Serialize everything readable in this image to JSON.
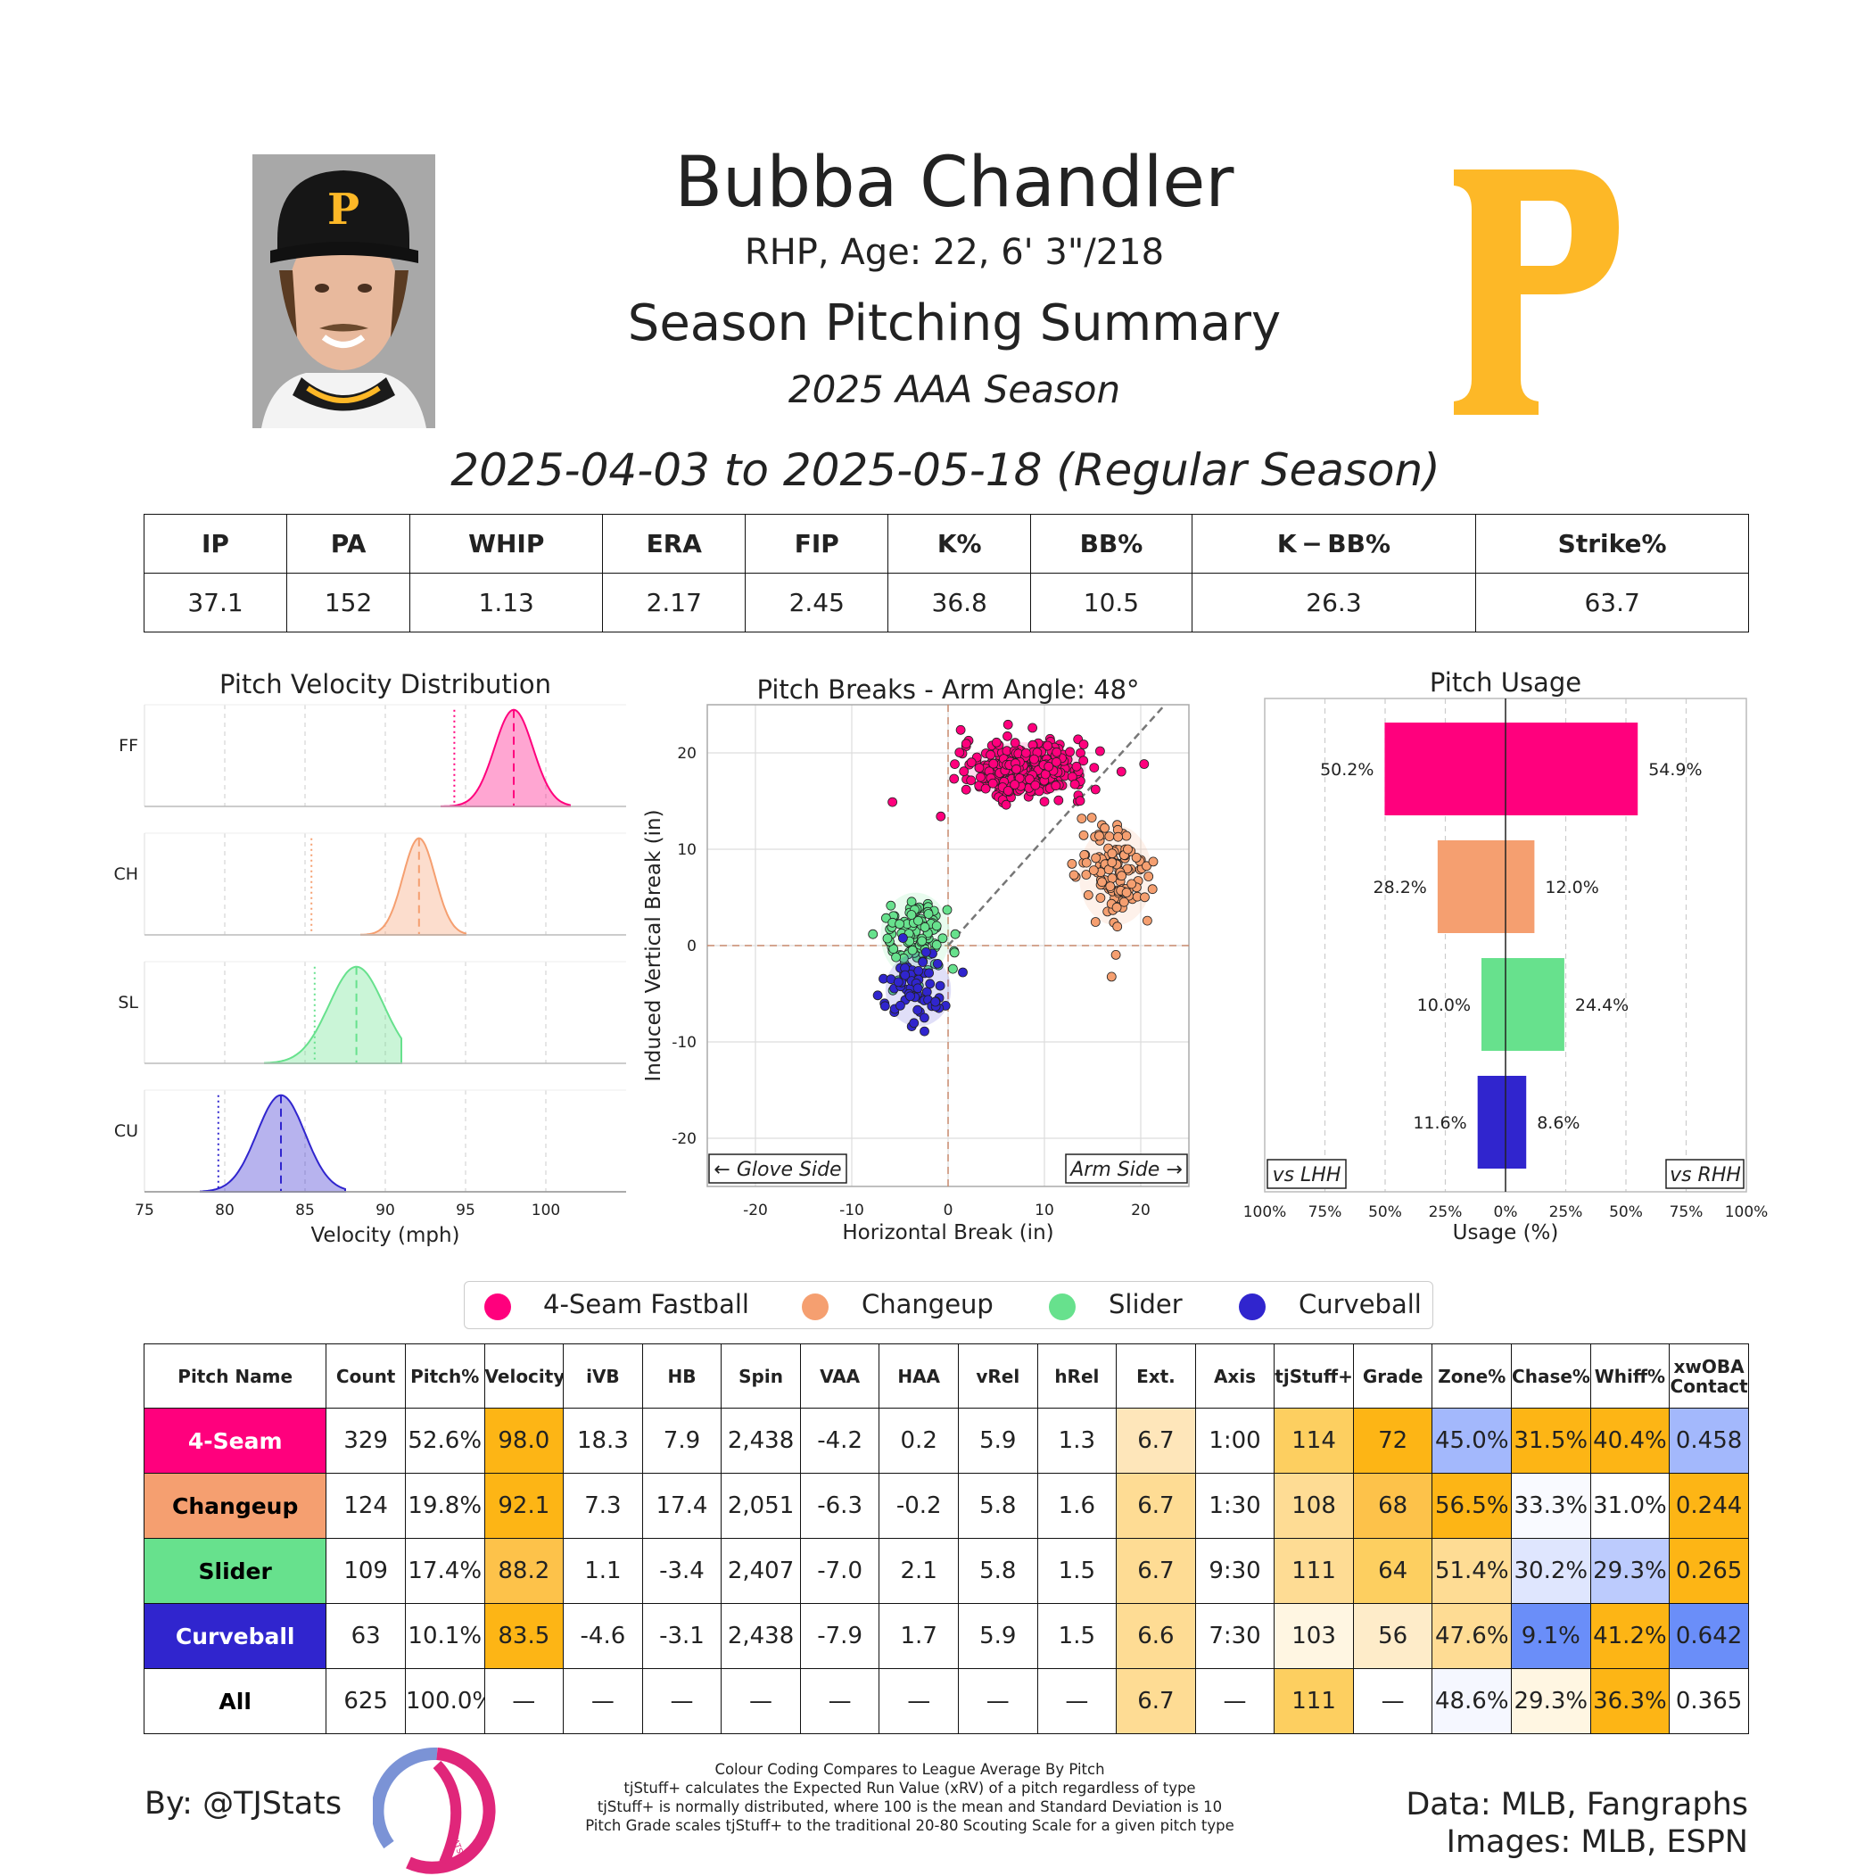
{
  "header": {
    "name": "Bubba Chandler",
    "bio": "RHP, Age: 22, 6' 3\"/218",
    "title": "Season Pitching Summary",
    "season": "2025 AAA Season",
    "date_range": "2025-04-03 to 2025-05-18 (Regular Season)"
  },
  "stat_table": {
    "headers": [
      "IP",
      "PA",
      "WHIP",
      "ERA",
      "FIP",
      "K%",
      "BB%",
      "K − BB%",
      "Strike%"
    ],
    "values": [
      "37.1",
      "152",
      "1.13",
      "2.17",
      "2.45",
      "36.8",
      "10.5",
      "26.3",
      "63.7"
    ]
  },
  "colors": {
    "4-Seam Fastball": "#ff007d",
    "Changeup": "#f59f70",
    "Slider": "#67e18d",
    "Curveball": "#3025ce",
    "team_gold": "#FDB827"
  },
  "legend": [
    "4-Seam Fastball",
    "Changeup",
    "Slider",
    "Curveball"
  ],
  "chart_data": [
    {
      "type": "area",
      "title": "Pitch Velocity Distribution",
      "xlabel": "Velocity (mph)",
      "xlim": [
        75,
        105
      ],
      "xticks": [
        "75",
        "80",
        "85",
        "90",
        "95",
        "100"
      ],
      "grid": true,
      "rows": [
        {
          "label": "FF",
          "pitch": "4-Seam Fastball",
          "mean": 98.0,
          "sd": 1.2,
          "league_avg": 94.3,
          "range": [
            93.5,
            101.5
          ]
        },
        {
          "label": "CH",
          "pitch": "Changeup",
          "mean": 92.1,
          "sd": 1.0,
          "league_avg": 85.4,
          "range": [
            88.5,
            95.0
          ]
        },
        {
          "label": "SL",
          "pitch": "Slider",
          "mean": 88.2,
          "sd": 1.7,
          "league_avg": 85.6,
          "range": [
            82.5,
            91.0
          ]
        },
        {
          "label": "CU",
          "pitch": "Curveball",
          "mean": 83.5,
          "sd": 1.5,
          "league_avg": 79.6,
          "range": [
            78.5,
            87.5
          ]
        }
      ]
    },
    {
      "type": "scatter",
      "title": "Pitch Breaks - Arm Angle: 48°",
      "xlabel": "Horizontal Break (in)",
      "ylabel": "Induced Vertical Break (in)",
      "xlim": [
        -25,
        25
      ],
      "ylim": [
        -25,
        25
      ],
      "xticks": [
        "-20",
        "-10",
        "0",
        "10",
        "20"
      ],
      "yticks": [
        "20",
        "10",
        "0",
        "-10",
        "-20"
      ],
      "arm_angle_deg": 48,
      "grid": true,
      "annotations": [
        "← Glove Side",
        "Arm Side →"
      ],
      "clusters": [
        {
          "pitch": "4-Seam Fastball",
          "center": [
            7.9,
            18.3
          ],
          "spread": [
            3.2,
            1.4
          ],
          "count": 329
        },
        {
          "pitch": "Changeup",
          "center": [
            17.4,
            7.3
          ],
          "spread": [
            1.9,
            2.6
          ],
          "count": 124
        },
        {
          "pitch": "Slider",
          "center": [
            -3.4,
            1.1
          ],
          "spread": [
            1.8,
            2.2
          ],
          "count": 109
        },
        {
          "pitch": "Curveball",
          "center": [
            -3.1,
            -4.6
          ],
          "spread": [
            1.7,
            1.9
          ],
          "count": 63
        }
      ]
    },
    {
      "type": "bar",
      "title": "Pitch Usage",
      "xlabel": "Usage (%)",
      "xlim": [
        -100,
        100
      ],
      "xticks": [
        "100%",
        "75%",
        "50%",
        "25%",
        "0%",
        "25%",
        "50%",
        "75%",
        "100%"
      ],
      "side_labels": [
        "vs LHH",
        "vs RHH"
      ],
      "categories": [
        "4-Seam Fastball",
        "Changeup",
        "Slider",
        "Curveball"
      ],
      "series": [
        {
          "name": "vs LHH",
          "values": [
            50.2,
            28.2,
            10.0,
            11.6
          ]
        },
        {
          "name": "vs RHH",
          "values": [
            54.9,
            12.0,
            24.4,
            8.6
          ]
        }
      ]
    }
  ],
  "pitch_table": {
    "headers": [
      "Pitch Name",
      "Count",
      "Pitch%",
      "Velocity",
      "iVB",
      "HB",
      "Spin",
      "VAA",
      "HAA",
      "vRel",
      "hRel",
      "Ext.",
      "Axis",
      "tjStuff+",
      "Grade",
      "Zone%",
      "Chase%",
      "Whiff%",
      "xwOBA Contact"
    ],
    "rows": [
      {
        "cells": [
          "4-Seam",
          "329",
          "52.6%",
          "98.0",
          "18.3",
          "7.9",
          "2,438",
          "-4.2",
          "0.2",
          "5.9",
          "1.3",
          "6.7",
          "1:00",
          "114",
          "72",
          "45.0%",
          "31.5%",
          "40.4%",
          "0.458"
        ],
        "bg": [
          "#ff007d",
          "",
          "",
          "#fdb515",
          "",
          "",
          "",
          "",
          "",
          "",
          "",
          "#fee6ba",
          "",
          "#fdcf60",
          "#fdb515",
          "#a3b8fc",
          "#fdb515",
          "#fdb515",
          "#a3b8fc"
        ],
        "fg": "#ffffff"
      },
      {
        "cells": [
          "Changeup",
          "124",
          "19.8%",
          "92.1",
          "7.3",
          "17.4",
          "2,051",
          "-6.3",
          "-0.2",
          "5.8",
          "1.6",
          "6.7",
          "1:30",
          "108",
          "68",
          "56.5%",
          "33.3%",
          "31.0%",
          "0.244"
        ],
        "bg": [
          "#f59f70",
          "",
          "",
          "#fdb515",
          "",
          "",
          "",
          "",
          "",
          "",
          "",
          "#fedc94",
          "",
          "#fedc94",
          "#fdc24a",
          "#fdb515",
          "#f9faff",
          "#ffffff",
          "#fdb515"
        ],
        "fg": "#000000"
      },
      {
        "cells": [
          "Slider",
          "109",
          "17.4%",
          "88.2",
          "1.1",
          "-3.4",
          "2,407",
          "-7.0",
          "2.1",
          "5.8",
          "1.5",
          "6.7",
          "9:30",
          "111",
          "64",
          "51.4%",
          "30.2%",
          "29.3%",
          "0.265"
        ],
        "bg": [
          "#67e18d",
          "",
          "",
          "#fdc24a",
          "",
          "",
          "",
          "",
          "",
          "",
          "",
          "#fedc94",
          "",
          "#fedc94",
          "#fdcf60",
          "#fedc94",
          "#dfe6fe",
          "#bccbfd",
          "#fdb515"
        ],
        "fg": "#000000"
      },
      {
        "cells": [
          "Curveball",
          "63",
          "10.1%",
          "83.5",
          "-4.6",
          "-3.1",
          "2,438",
          "-7.9",
          "1.7",
          "5.9",
          "1.5",
          "6.6",
          "7:30",
          "103",
          "56",
          "47.6%",
          "9.1%",
          "41.2%",
          "0.642"
        ],
        "bg": [
          "#3025ce",
          "",
          "",
          "#fdb515",
          "",
          "",
          "",
          "",
          "",
          "",
          "",
          "#fedc94",
          "",
          "#fff6e2",
          "#feecc9",
          "#fedc94",
          "#6a8ef9",
          "#fdb515",
          "#6a8ef9"
        ],
        "fg": "#ffffff"
      },
      {
        "cells": [
          "All",
          "625",
          "100.0%",
          "—",
          "—",
          "—",
          "—",
          "—",
          "—",
          "—",
          "—",
          "6.7",
          "—",
          "111",
          "—",
          "48.6%",
          "29.3%",
          "36.3%",
          "0.365"
        ],
        "bg": [
          "",
          "",
          "",
          "",
          "",
          "",
          "",
          "",
          "",
          "",
          "",
          "#fedc94",
          "",
          "#fdcf60",
          "",
          "#f5f7ff",
          "#fff6e2",
          "#fdb515",
          ""
        ],
        "fg": "#000000"
      }
    ]
  },
  "footer": {
    "by": "By: @TJStats",
    "data_source": "Data: MLB, Fangraphs",
    "images_source": "Images: MLB, ESPN",
    "logo_text": "STATS",
    "notes": [
      "Colour Coding Compares to League Average By Pitch",
      "tjStuff+ calculates the Expected Run Value (xRV) of a pitch regardless of type",
      "tjStuff+ is normally distributed, where 100 is the mean and Standard Deviation is 10",
      "Pitch Grade scales tjStuff+ to the traditional 20-80 Scouting Scale for a given pitch type"
    ]
  }
}
